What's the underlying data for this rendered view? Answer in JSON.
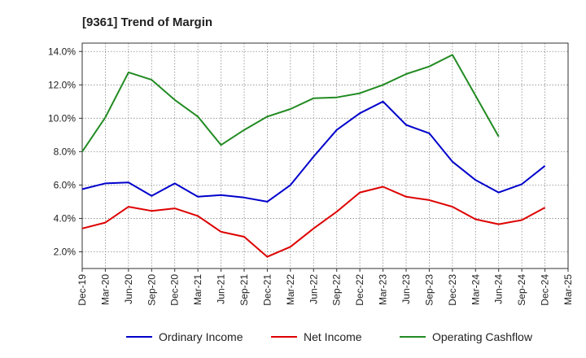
{
  "chart_data": {
    "type": "line",
    "title": "[9361]  Trend of Margin",
    "xlabel": "",
    "ylabel": "",
    "categories": [
      "Dec-19",
      "Mar-20",
      "Jun-20",
      "Sep-20",
      "Dec-20",
      "Mar-21",
      "Jun-21",
      "Sep-21",
      "Dec-21",
      "Mar-22",
      "Jun-22",
      "Sep-22",
      "Dec-22",
      "Mar-23",
      "Jun-23",
      "Sep-23",
      "Dec-23",
      "Mar-24",
      "Jun-24",
      "Sep-24",
      "Dec-24",
      "Mar-25"
    ],
    "ylim": [
      1.0,
      14.5
    ],
    "yticks": [
      2.0,
      4.0,
      6.0,
      8.0,
      10.0,
      12.0,
      14.0
    ],
    "ytick_labels": [
      "2.0%",
      "4.0%",
      "6.0%",
      "8.0%",
      "10.0%",
      "12.0%",
      "14.0%"
    ],
    "grid": true,
    "legend_position": "bottom",
    "series": [
      {
        "name": "Ordinary Income",
        "color": "#0000cc",
        "values": [
          5.75,
          6.1,
          6.15,
          5.35,
          6.1,
          5.3,
          5.4,
          5.25,
          5.0,
          6.0,
          7.7,
          9.3,
          10.3,
          11.0,
          9.6,
          9.1,
          7.4,
          6.3,
          5.55,
          6.05,
          7.15,
          null
        ]
      },
      {
        "name": "Net Income",
        "color": "#dd0000",
        "values": [
          3.4,
          3.75,
          4.7,
          4.45,
          4.6,
          4.15,
          3.2,
          2.9,
          1.7,
          2.3,
          3.4,
          4.4,
          5.55,
          5.9,
          5.3,
          5.1,
          4.7,
          3.95,
          3.65,
          3.9,
          4.65,
          null
        ]
      },
      {
        "name": "Operating Cashflow",
        "color": "#228b22",
        "values": [
          8.0,
          10.05,
          12.75,
          12.3,
          11.1,
          10.1,
          8.4,
          9.3,
          10.1,
          10.55,
          11.2,
          11.25,
          11.5,
          12.0,
          12.65,
          13.1,
          13.8,
          11.35,
          8.9,
          null,
          null,
          null
        ]
      }
    ]
  }
}
